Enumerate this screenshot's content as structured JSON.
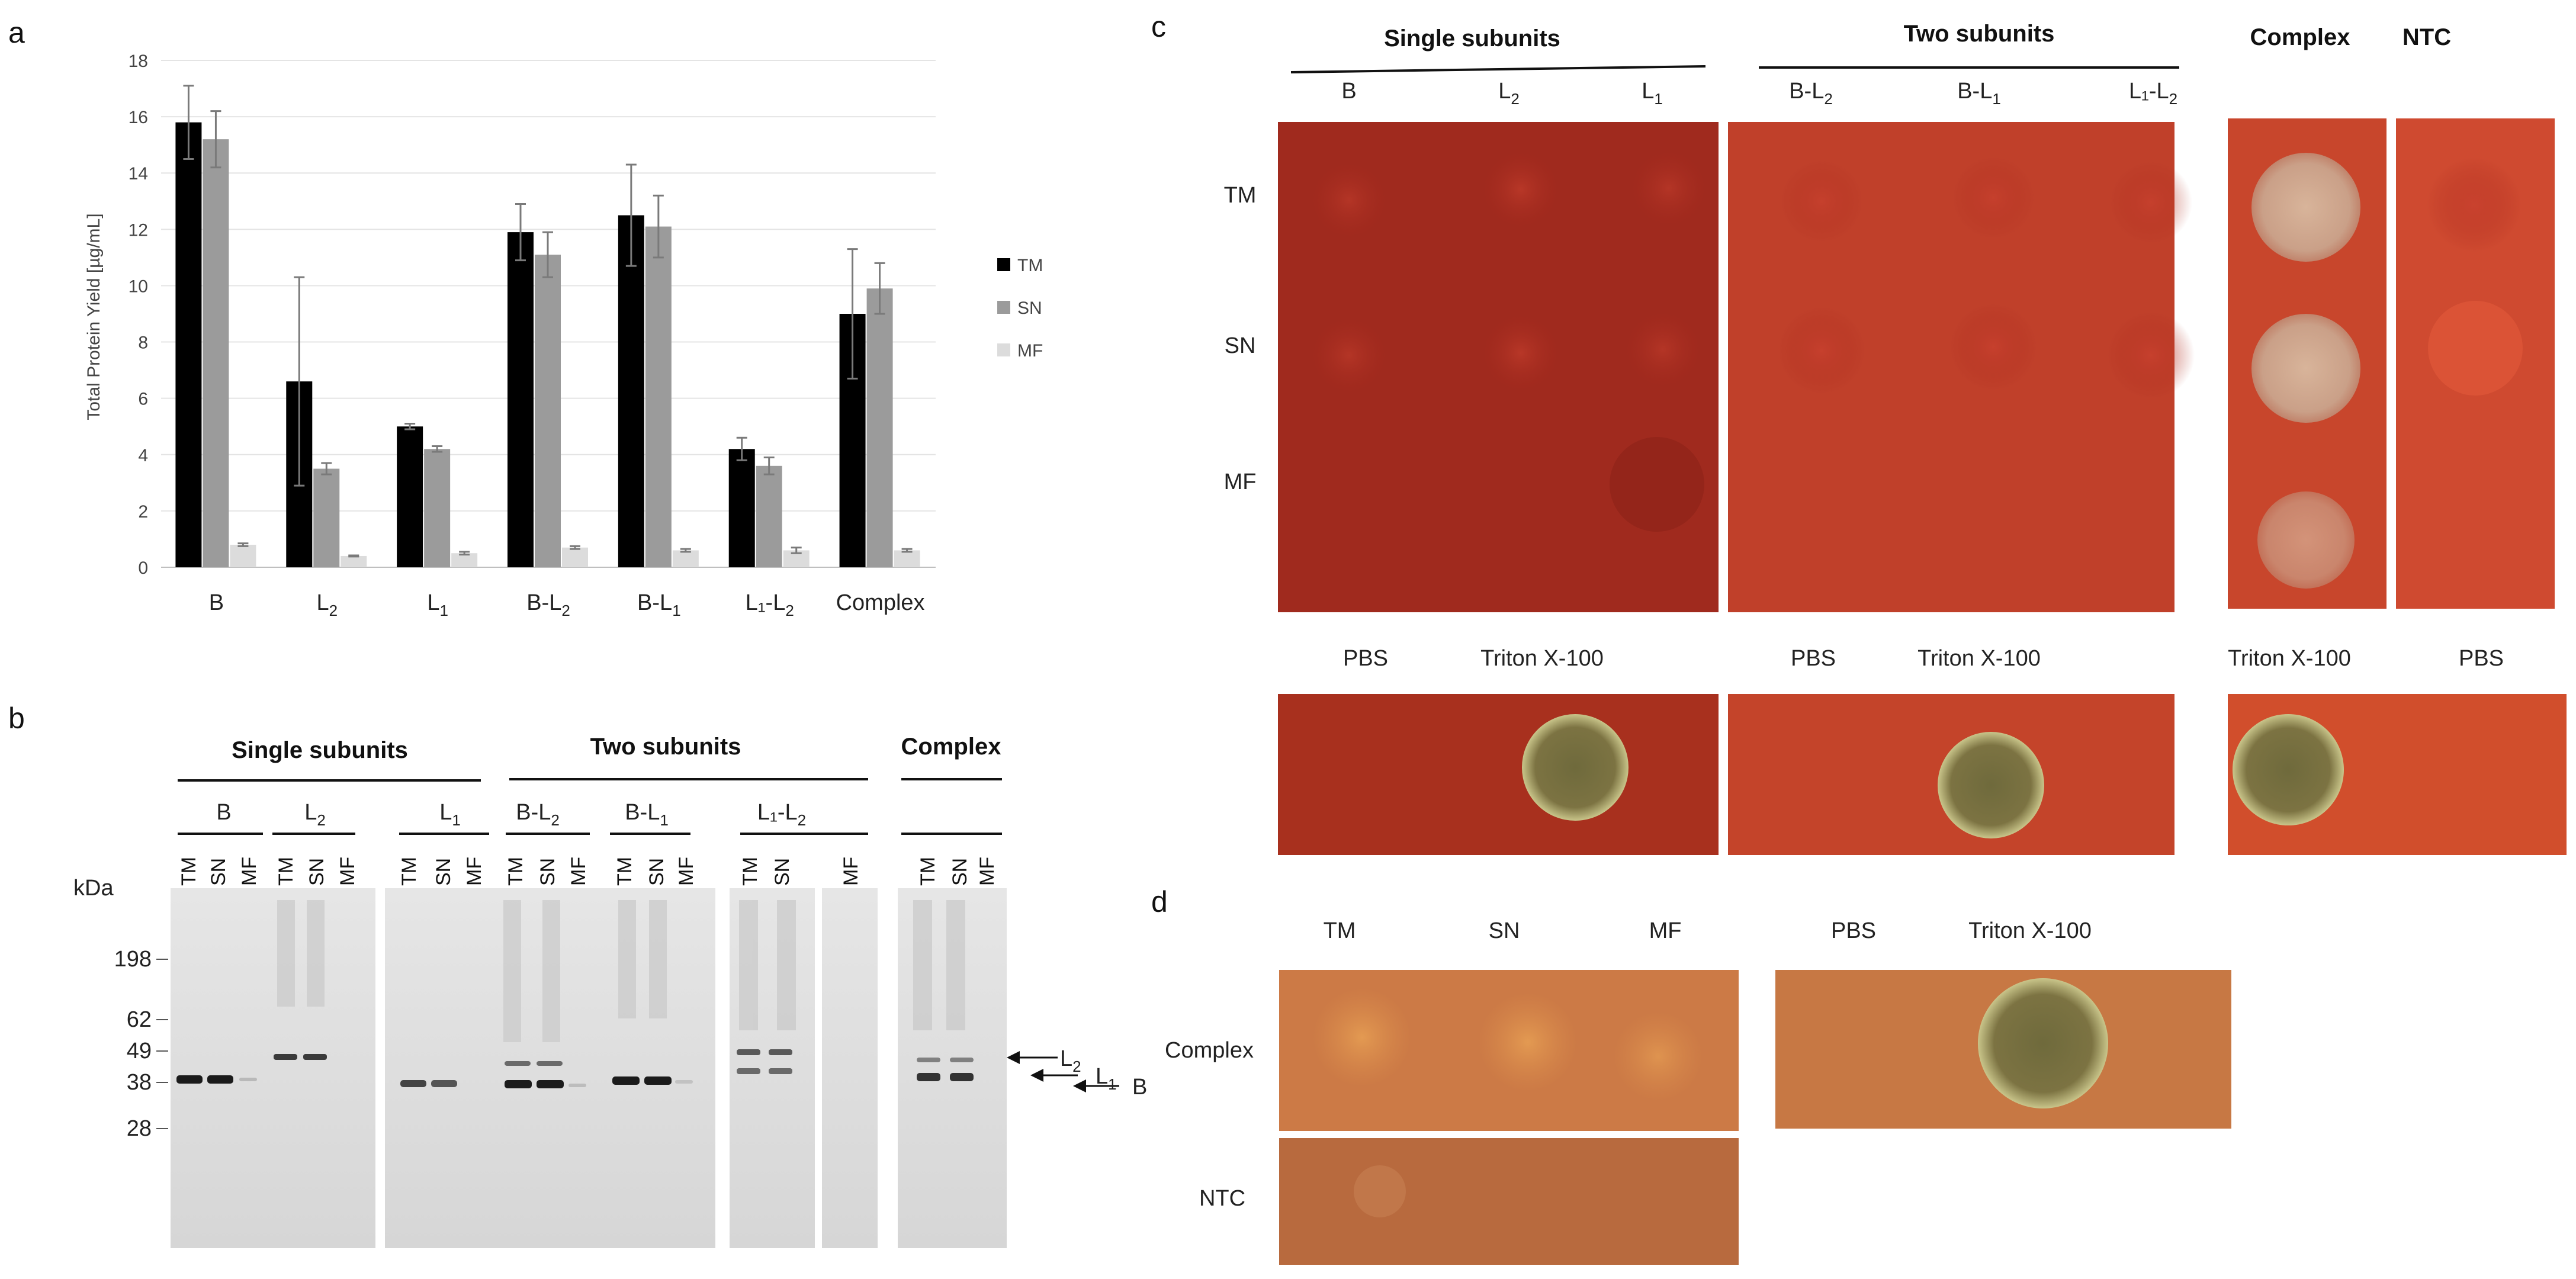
{
  "panels": {
    "a": {
      "label": "a"
    },
    "b": {
      "label": "b"
    },
    "c": {
      "label": "c"
    },
    "d": {
      "label": "d"
    }
  },
  "chart_data": {
    "type": "bar",
    "title": "",
    "xlabel": "",
    "ylabel": "Total Protein Yield [µg/mL]",
    "ylim": [
      0,
      18
    ],
    "yticks": [
      0,
      2,
      4,
      6,
      8,
      10,
      12,
      14,
      16,
      18
    ],
    "categories": [
      {
        "main": "B",
        "sub": ""
      },
      {
        "main": "L",
        "sub": "2"
      },
      {
        "main": "L",
        "sub": "1"
      },
      {
        "main": "B-L",
        "sub": "2"
      },
      {
        "main": "B-L",
        "sub": "1"
      },
      {
        "main": "L₁-L",
        "sub": "2"
      },
      {
        "main": "Complex",
        "sub": ""
      }
    ],
    "series": [
      {
        "name": "TM",
        "color": "#000000",
        "values": [
          15.8,
          6.6,
          5.0,
          11.9,
          12.5,
          4.2,
          9.0
        ],
        "errors": [
          1.3,
          3.7,
          0.1,
          1.0,
          1.8,
          0.4,
          2.3
        ]
      },
      {
        "name": "SN",
        "color": "#9b9b9b",
        "values": [
          15.2,
          3.5,
          4.2,
          11.1,
          12.1,
          3.6,
          9.9
        ],
        "errors": [
          1.0,
          0.2,
          0.1,
          0.8,
          1.1,
          0.3,
          0.9
        ]
      },
      {
        "name": "MF",
        "color": "#dcdcdc",
        "values": [
          0.8,
          0.4,
          0.5,
          0.7,
          0.6,
          0.6,
          0.6
        ],
        "errors": [
          0.05,
          0.02,
          0.05,
          0.05,
          0.05,
          0.1,
          0.05
        ]
      }
    ],
    "legend_position": "right"
  },
  "gel": {
    "group_headers": [
      "Single subunits",
      "Two subunits",
      "Complex"
    ],
    "subgroup_labels": [
      {
        "main": "B",
        "sub": ""
      },
      {
        "main": "L",
        "sub": "2"
      },
      {
        "main": "L",
        "sub": "1"
      },
      {
        "main": "B-L",
        "sub": "2"
      },
      {
        "main": "B-L",
        "sub": "1"
      },
      {
        "main": "L₁-L",
        "sub": "2"
      }
    ],
    "lane_labels": [
      "TM",
      "SN",
      "MF"
    ],
    "kda_label": "kDa",
    "markers": [
      "198",
      "62",
      "49",
      "38",
      "28"
    ],
    "band_labels": [
      {
        "main": "L",
        "sub": "2"
      },
      {
        "main": "L",
        "sub": "1"
      },
      {
        "main": "B",
        "sub": ""
      }
    ]
  },
  "panel_c": {
    "headers": [
      "Single subunits",
      "Two subunits",
      "Complex",
      "NTC"
    ],
    "single_cols": [
      {
        "main": "B",
        "sub": ""
      },
      {
        "main": "L",
        "sub": "2"
      },
      {
        "main": "L",
        "sub": "1"
      }
    ],
    "two_cols": [
      {
        "main": "B-L",
        "sub": "2"
      },
      {
        "main": "B-L",
        "sub": "1"
      },
      {
        "main": "L₁-L",
        "sub": "2"
      }
    ],
    "rows": [
      "TM",
      "SN",
      "MF"
    ],
    "controls": [
      "PBS",
      "Triton X-100",
      "PBS",
      "Triton X-100",
      "Triton X-100",
      "PBS"
    ]
  },
  "panel_d": {
    "cols": [
      "TM",
      "SN",
      "MF"
    ],
    "rows": [
      "Complex",
      "NTC"
    ],
    "controls": [
      "PBS",
      "Triton X-100"
    ]
  }
}
